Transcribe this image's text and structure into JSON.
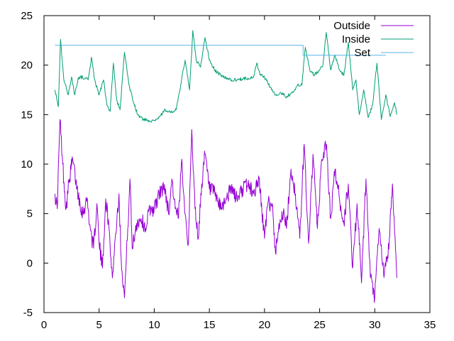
{
  "chart_data": {
    "type": "line",
    "title": "",
    "xlabel": "",
    "ylabel": "",
    "xlim": [
      0,
      35
    ],
    "ylim": [
      -5,
      25
    ],
    "xticks": [
      0,
      5,
      10,
      15,
      20,
      25,
      30,
      35
    ],
    "yticks": [
      -5,
      0,
      5,
      10,
      15,
      20,
      25
    ],
    "grid": false,
    "legend_position": "top-right",
    "series": [
      {
        "name": "Outside",
        "color": "#9400d3",
        "style": "noisy",
        "points": [
          [
            1.0,
            7.0
          ],
          [
            1.2,
            5.5
          ],
          [
            1.45,
            14.5
          ],
          [
            1.7,
            10.0
          ],
          [
            2.0,
            5.5
          ],
          [
            2.3,
            8.5
          ],
          [
            2.6,
            10.5
          ],
          [
            3.0,
            7.5
          ],
          [
            3.5,
            5.0
          ],
          [
            3.9,
            6.5
          ],
          [
            4.2,
            3.5
          ],
          [
            4.5,
            1.5
          ],
          [
            4.8,
            6.0
          ],
          [
            5.0,
            2.0
          ],
          [
            5.3,
            -0.5
          ],
          [
            5.6,
            6.5
          ],
          [
            5.9,
            3.5
          ],
          [
            6.2,
            -1.5
          ],
          [
            6.5,
            3.0
          ],
          [
            6.8,
            7.0
          ],
          [
            7.0,
            0.5
          ],
          [
            7.3,
            -3.5
          ],
          [
            7.6,
            3.5
          ],
          [
            7.8,
            8.5
          ],
          [
            8.0,
            1.5
          ],
          [
            8.4,
            4.0
          ],
          [
            8.8,
            4.5
          ],
          [
            9.2,
            3.5
          ],
          [
            9.6,
            5.5
          ],
          [
            10.0,
            5.5
          ],
          [
            10.3,
            6.5
          ],
          [
            10.7,
            7.5
          ],
          [
            11.0,
            7.5
          ],
          [
            11.3,
            5.0
          ],
          [
            11.6,
            8.5
          ],
          [
            11.9,
            5.5
          ],
          [
            12.2,
            4.5
          ],
          [
            12.5,
            10.5
          ],
          [
            12.8,
            5.0
          ],
          [
            13.1,
            2.0
          ],
          [
            13.4,
            13.5
          ],
          [
            13.7,
            5.5
          ],
          [
            14.0,
            2.5
          ],
          [
            14.3,
            8.0
          ],
          [
            14.6,
            11.0
          ],
          [
            15.0,
            7.5
          ],
          [
            15.5,
            7.0
          ],
          [
            16.0,
            5.5
          ],
          [
            16.5,
            6.5
          ],
          [
            17.0,
            7.5
          ],
          [
            17.5,
            6.5
          ],
          [
            18.0,
            7.5
          ],
          [
            18.5,
            8.0
          ],
          [
            19.0,
            7.0
          ],
          [
            19.5,
            8.5
          ],
          [
            20.0,
            2.5
          ],
          [
            20.3,
            6.0
          ],
          [
            20.7,
            6.0
          ],
          [
            21.0,
            1.0
          ],
          [
            21.3,
            4.0
          ],
          [
            21.7,
            5.0
          ],
          [
            22.0,
            3.5
          ],
          [
            22.4,
            9.5
          ],
          [
            22.8,
            7.0
          ],
          [
            23.2,
            2.5
          ],
          [
            23.6,
            12.0
          ],
          [
            24.0,
            2.0
          ],
          [
            24.4,
            11.0
          ],
          [
            24.8,
            3.5
          ],
          [
            25.2,
            10.5
          ],
          [
            25.6,
            12.0
          ],
          [
            26.0,
            4.5
          ],
          [
            26.4,
            9.5
          ],
          [
            26.8,
            6.5
          ],
          [
            27.2,
            4.0
          ],
          [
            27.6,
            8.0
          ],
          [
            28.0,
            -0.5
          ],
          [
            28.4,
            6.0
          ],
          [
            28.8,
            -2.0
          ],
          [
            29.2,
            8.5
          ],
          [
            29.6,
            -1.5
          ],
          [
            30.0,
            -3.5
          ],
          [
            30.4,
            3.5
          ],
          [
            30.8,
            -1.0
          ],
          [
            31.2,
            0.5
          ],
          [
            31.6,
            8.0
          ],
          [
            32.0,
            -1.5
          ]
        ]
      },
      {
        "name": "Inside",
        "color": "#009e73",
        "style": "smooth",
        "points": [
          [
            1.0,
            17.5
          ],
          [
            1.3,
            15.8
          ],
          [
            1.5,
            22.6
          ],
          [
            1.8,
            18.5
          ],
          [
            2.2,
            17.0
          ],
          [
            2.5,
            18.8
          ],
          [
            2.8,
            17.0
          ],
          [
            3.1,
            18.7
          ],
          [
            3.5,
            18.8
          ],
          [
            4.0,
            18.5
          ],
          [
            4.3,
            20.8
          ],
          [
            4.6,
            18.5
          ],
          [
            5.0,
            17.0
          ],
          [
            5.4,
            18.5
          ],
          [
            5.7,
            16.0
          ],
          [
            6.0,
            15.3
          ],
          [
            6.3,
            20.2
          ],
          [
            6.6,
            16.5
          ],
          [
            6.9,
            15.5
          ],
          [
            7.3,
            21.3
          ],
          [
            7.7,
            18.0
          ],
          [
            8.1,
            16.3
          ],
          [
            8.5,
            15.0
          ],
          [
            9.0,
            14.5
          ],
          [
            9.5,
            14.4
          ],
          [
            10.0,
            14.4
          ],
          [
            10.5,
            14.8
          ],
          [
            11.0,
            15.5
          ],
          [
            11.5,
            15.2
          ],
          [
            12.0,
            15.5
          ],
          [
            12.4,
            18.0
          ],
          [
            12.8,
            20.5
          ],
          [
            13.2,
            17.5
          ],
          [
            13.5,
            23.5
          ],
          [
            13.8,
            20.5
          ],
          [
            14.2,
            19.8
          ],
          [
            14.6,
            22.8
          ],
          [
            15.0,
            20.5
          ],
          [
            15.5,
            19.5
          ],
          [
            16.0,
            19.0
          ],
          [
            16.5,
            18.7
          ],
          [
            17.0,
            18.5
          ],
          [
            17.5,
            18.5
          ],
          [
            18.0,
            18.6
          ],
          [
            18.5,
            18.7
          ],
          [
            19.0,
            18.8
          ],
          [
            19.3,
            20.2
          ],
          [
            19.6,
            19.0
          ],
          [
            20.0,
            18.8
          ],
          [
            20.5,
            17.8
          ],
          [
            21.0,
            17.0
          ],
          [
            21.5,
            17.2
          ],
          [
            22.0,
            16.8
          ],
          [
            22.5,
            17.2
          ],
          [
            23.0,
            18.0
          ],
          [
            23.4,
            18.0
          ],
          [
            23.7,
            21.8
          ],
          [
            24.1,
            19.5
          ],
          [
            24.5,
            19.0
          ],
          [
            25.0,
            19.5
          ],
          [
            25.3,
            20.0
          ],
          [
            25.6,
            23.3
          ],
          [
            26.0,
            19.5
          ],
          [
            26.4,
            21.0
          ],
          [
            26.8,
            19.5
          ],
          [
            27.2,
            19.0
          ],
          [
            27.6,
            22.3
          ],
          [
            28.0,
            17.5
          ],
          [
            28.3,
            18.5
          ],
          [
            28.6,
            15.0
          ],
          [
            29.0,
            17.5
          ],
          [
            29.4,
            14.7
          ],
          [
            29.8,
            16.0
          ],
          [
            30.2,
            20.2
          ],
          [
            30.6,
            14.5
          ],
          [
            31.0,
            17.0
          ],
          [
            31.4,
            14.8
          ],
          [
            31.8,
            16.2
          ],
          [
            32.0,
            15.0
          ]
        ]
      },
      {
        "name": "Set",
        "color": "#56b4e9",
        "style": "step",
        "points": [
          [
            1.0,
            22.0
          ],
          [
            23.5,
            22.0
          ],
          [
            23.5,
            21.0
          ],
          [
            31.0,
            21.0
          ]
        ]
      }
    ]
  }
}
